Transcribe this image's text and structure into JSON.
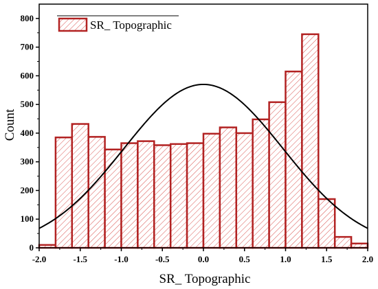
{
  "chart_data": {
    "type": "bar",
    "subtype": "histogram-with-normal-curve",
    "title": "",
    "xlabel": "SR_ Topographic",
    "ylabel": "Count",
    "xlim": [
      -2.0,
      2.0
    ],
    "ylim": [
      0,
      850
    ],
    "x_ticks": [
      "-2.0",
      "-1.5",
      "-1.0",
      "-0.5",
      "0.0",
      "0.5",
      "1.0",
      "1.5",
      "2.0"
    ],
    "y_ticks": [
      "0",
      "100",
      "200",
      "300",
      "400",
      "500",
      "600",
      "700",
      "800"
    ],
    "bin_width": 0.2,
    "bin_starts": [
      -2.0,
      -1.8,
      -1.6,
      -1.4,
      -1.2,
      -1.0,
      -0.8,
      -0.6,
      -0.4,
      -0.2,
      0.0,
      0.2,
      0.4,
      0.6,
      0.8,
      1.0,
      1.2,
      1.4,
      1.6,
      1.8
    ],
    "values": [
      10,
      385,
      432,
      387,
      343,
      365,
      372,
      358,
      362,
      365,
      398,
      420,
      400,
      448,
      508,
      615,
      745,
      170,
      38,
      15
    ],
    "series": [
      {
        "name": "SR_ Topographic",
        "values": [
          10,
          385,
          432,
          387,
          343,
          365,
          372,
          358,
          362,
          365,
          398,
          420,
          400,
          448,
          508,
          615,
          745,
          170,
          38,
          15
        ]
      }
    ],
    "fit_curve": {
      "type": "normal",
      "mean": 0.0,
      "peak": 570,
      "sd": 0.97
    },
    "legend": {
      "position": "top-left",
      "entries": [
        "SR_ Topographic"
      ]
    },
    "grid": false,
    "colors": {
      "bar_edge": "#b22222",
      "bar_hatch": "#d9534f",
      "bar_fill": "#ffffff",
      "curve": "#000000"
    }
  }
}
